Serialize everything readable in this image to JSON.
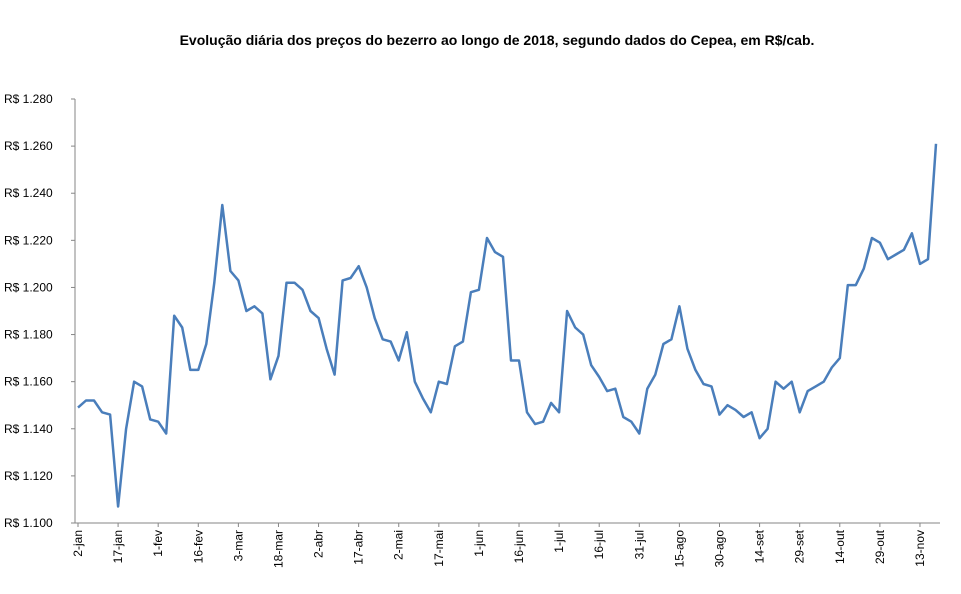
{
  "chart_data": {
    "type": "line",
    "title": "Evolução diária dos preços do bezerro ao longo de 2018, segundo dados do Cepea, em R$/cab.",
    "categories": [
      "2-jan",
      null,
      null,
      null,
      null,
      "17-jan",
      null,
      null,
      null,
      null,
      "1-fev",
      null,
      null,
      null,
      null,
      "16-fev",
      null,
      null,
      null,
      null,
      "3-mar",
      null,
      null,
      null,
      null,
      "18-mar",
      null,
      null,
      null,
      null,
      "2-abr",
      null,
      null,
      null,
      null,
      "17-abr",
      null,
      null,
      null,
      null,
      "2-mai",
      null,
      null,
      null,
      null,
      "17-mai",
      null,
      null,
      null,
      null,
      "1-jun",
      null,
      null,
      null,
      null,
      "16-jun",
      null,
      null,
      null,
      null,
      "1-jul",
      null,
      null,
      null,
      null,
      "16-jul",
      null,
      null,
      null,
      null,
      "31-jul",
      null,
      null,
      null,
      null,
      "15-ago",
      null,
      null,
      null,
      null,
      "30-ago",
      null,
      null,
      null,
      null,
      "14-set",
      null,
      null,
      null,
      null,
      "29-set",
      null,
      null,
      null,
      null,
      "14-out",
      null,
      null,
      null,
      null,
      "29-out",
      null,
      null,
      null,
      null,
      "13-nov",
      null,
      null
    ],
    "series": [
      {
        "color": "#4a7ebb",
        "values": [
          1.149,
          1.152,
          1.152,
          1.147,
          1.146,
          1.107,
          1.14,
          1.16,
          1.158,
          1.144,
          1.143,
          1.138,
          1.188,
          1.183,
          1.165,
          1.165,
          1.176,
          1.202,
          1.235,
          1.207,
          1.203,
          1.19,
          1.192,
          1.189,
          1.161,
          1.171,
          1.202,
          1.202,
          1.199,
          1.19,
          1.187,
          1.174,
          1.163,
          1.203,
          1.204,
          1.209,
          1.2,
          1.187,
          1.178,
          1.177,
          1.169,
          1.181,
          1.16,
          1.153,
          1.147,
          1.16,
          1.159,
          1.175,
          1.177,
          1.198,
          1.199,
          1.221,
          1.215,
          1.213,
          1.169,
          1.169,
          1.147,
          1.142,
          1.143,
          1.151,
          1.147,
          1.19,
          1.183,
          1.18,
          1.167,
          1.162,
          1.156,
          1.157,
          1.145,
          1.143,
          1.138,
          1.157,
          1.163,
          1.176,
          1.178,
          1.192,
          1.174,
          1.165,
          1.159,
          1.158,
          1.146,
          1.15,
          1.148,
          1.145,
          1.147,
          1.136,
          1.14,
          1.16,
          1.157,
          1.16,
          1.147,
          1.156,
          1.158,
          1.16,
          1.166,
          1.17,
          1.201,
          1.201,
          1.208,
          1.221,
          1.219,
          1.212,
          1.214,
          1.216,
          1.223,
          1.21,
          1.212,
          1.261
        ]
      }
    ],
    "ylim": [
      1.1,
      1.28
    ],
    "yticks": [
      {
        "value": 1.1,
        "label": "R$ 1.100"
      },
      {
        "value": 1.12,
        "label": "R$ 1.120"
      },
      {
        "value": 1.14,
        "label": "R$ 1.140"
      },
      {
        "value": 1.16,
        "label": "R$ 1.160"
      },
      {
        "value": 1.18,
        "label": "R$ 1.180"
      },
      {
        "value": 1.2,
        "label": "R$ 1.200"
      },
      {
        "value": 1.22,
        "label": "R$ 1.220"
      },
      {
        "value": 1.24,
        "label": "R$ 1.240"
      },
      {
        "value": 1.26,
        "label": "R$ 1.260"
      },
      {
        "value": 1.28,
        "label": "R$ 1.280"
      }
    ],
    "grid": false
  }
}
